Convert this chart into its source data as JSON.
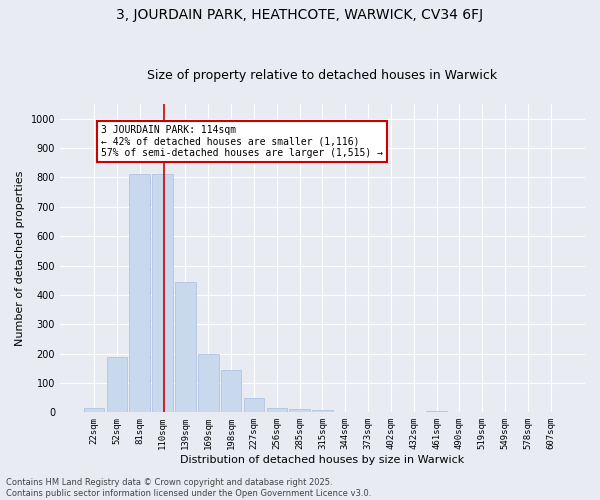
{
  "title": "3, JOURDAIN PARK, HEATHCOTE, WARWICK, CV34 6FJ",
  "subtitle": "Size of property relative to detached houses in Warwick",
  "xlabel": "Distribution of detached houses by size in Warwick",
  "ylabel": "Number of detached properties",
  "bar_color": "#c8d8ed",
  "bar_edge_color": "#a8bedd",
  "categories": [
    "22sqm",
    "52sqm",
    "81sqm",
    "110sqm",
    "139sqm",
    "169sqm",
    "198sqm",
    "227sqm",
    "256sqm",
    "285sqm",
    "315sqm",
    "344sqm",
    "373sqm",
    "402sqm",
    "432sqm",
    "461sqm",
    "490sqm",
    "519sqm",
    "549sqm",
    "578sqm",
    "607sqm"
  ],
  "values": [
    15,
    190,
    810,
    810,
    445,
    200,
    145,
    50,
    15,
    10,
    7,
    0,
    0,
    0,
    0,
    5,
    0,
    0,
    0,
    0,
    0
  ],
  "ylim": [
    0,
    1050
  ],
  "yticks": [
    0,
    100,
    200,
    300,
    400,
    500,
    600,
    700,
    800,
    900,
    1000
  ],
  "vline_idx": 3,
  "vline_color": "#cc0000",
  "annotation_text": "3 JOURDAIN PARK: 114sqm\n← 42% of detached houses are smaller (1,116)\n57% of semi-detached houses are larger (1,515) →",
  "annotation_box_color": "#ffffff",
  "annotation_box_edge": "#cc0000",
  "footer_line1": "Contains HM Land Registry data © Crown copyright and database right 2025.",
  "footer_line2": "Contains public sector information licensed under the Open Government Licence v3.0.",
  "background_color": "#e8ecf2",
  "grid_color": "#ffffff",
  "title_fontsize": 10,
  "subtitle_fontsize": 9,
  "tick_fontsize": 6.5,
  "label_fontsize": 8,
  "footer_fontsize": 6
}
